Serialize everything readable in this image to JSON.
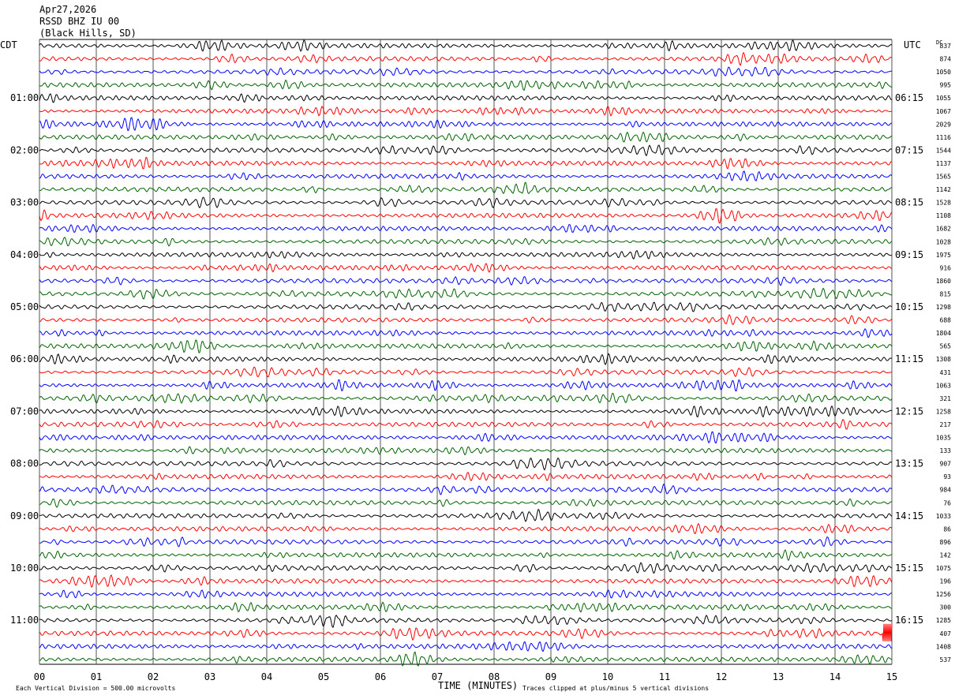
{
  "header": {
    "date": "Apr27,2026",
    "station": "RSSD BHZ IU 00",
    "location": "(Black Hills, SD)"
  },
  "left_tz_label": "CDT",
  "right_tz_label": "UTC",
  "dc_label": "DC",
  "footer": {
    "scale_note": "Each Vertical Division =  500.00 microvolts",
    "xlabel": "TIME (MINUTES)",
    "clip_note": "Traces clipped at plus/minus 5 vertical divisions"
  },
  "chart_data": {
    "type": "helicorder",
    "xlabel": "TIME (MINUTES)",
    "xlim": [
      0,
      15
    ],
    "x_ticks": [
      "00",
      "01",
      "02",
      "03",
      "04",
      "05",
      "06",
      "07",
      "08",
      "09",
      "10",
      "11",
      "12",
      "13",
      "14",
      "15"
    ],
    "row_minutes": 15,
    "row_count": 48,
    "trace_colors": [
      "#000000",
      "#ff0000",
      "#0000ff",
      "#006400"
    ],
    "grid": true,
    "left_hour_labels": [
      "01:00",
      "02:00",
      "03:00",
      "04:00",
      "05:00",
      "06:00",
      "07:00",
      "08:00",
      "09:00",
      "10:00",
      "11:00"
    ],
    "right_hour_labels": [
      "06:15",
      "07:15",
      "08:15",
      "09:15",
      "10:15",
      "11:15",
      "12:15",
      "13:15",
      "14:15",
      "15:15",
      "16:15"
    ],
    "dc_offsets": [
      "837",
      "874",
      "1050",
      "995",
      "1055",
      "1067",
      "2029",
      "1116",
      "1544",
      "1137",
      "1565",
      "1142",
      "1528",
      "1108",
      "1682",
      "1028",
      "1975",
      "916",
      "1860",
      "815",
      "1298",
      "688",
      "1804",
      "565",
      "1308",
      "431",
      "1063",
      "321",
      "1258",
      "217",
      "1035",
      "133",
      "907",
      "93",
      "984",
      "76",
      "1033",
      "86",
      "896",
      "142",
      "1075",
      "196",
      "1256",
      "300",
      "1285",
      "407",
      "1408",
      "537"
    ]
  }
}
